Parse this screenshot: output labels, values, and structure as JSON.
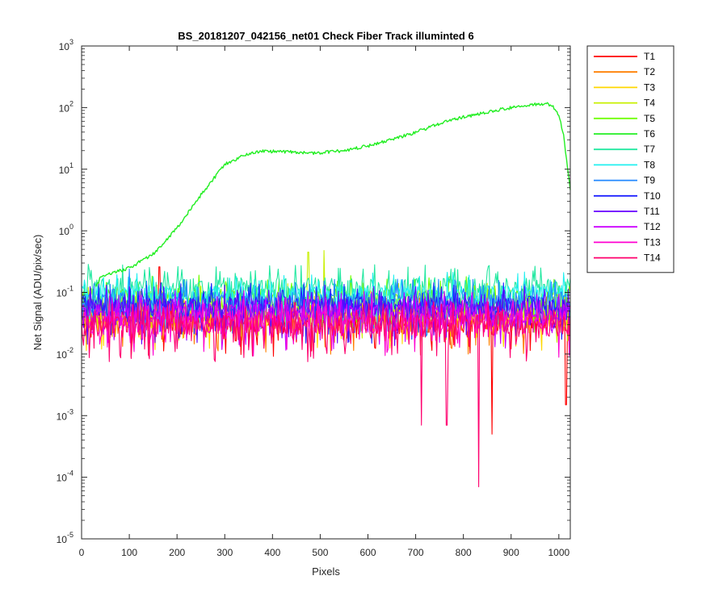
{
  "chart_data": {
    "type": "line",
    "title": "BS_20181207_042156_net01    Check Fiber     Track illuminted 6",
    "xlabel": "Pixels",
    "ylabel": "Net Signal (ADU/pix/sec)",
    "xlim": [
      0,
      1024
    ],
    "ylim": [
      1e-05,
      1000
    ],
    "yscale": "log",
    "xticks": [
      "0",
      "100",
      "200",
      "300",
      "400",
      "500",
      "600",
      "700",
      "800",
      "900",
      "1000"
    ],
    "yticks": [
      {
        "base": "10",
        "exp": "-5"
      },
      {
        "base": "10",
        "exp": "-4"
      },
      {
        "base": "10",
        "exp": "-3"
      },
      {
        "base": "10",
        "exp": "-2"
      },
      {
        "base": "10",
        "exp": "-1"
      },
      {
        "base": "10",
        "exp": "0"
      },
      {
        "base": "10",
        "exp": "1"
      },
      {
        "base": "10",
        "exp": "2"
      },
      {
        "base": "10",
        "exp": "3"
      }
    ],
    "grid": false,
    "legend_position": "outside-right",
    "illuminated_track": "T6",
    "illuminated_profile": {
      "x": [
        30,
        40,
        100,
        150,
        200,
        250,
        300,
        350,
        380,
        420,
        480,
        550,
        600,
        650,
        700,
        750,
        800,
        850,
        900,
        950,
        975,
        990,
        1000,
        1010,
        1020,
        1024
      ],
      "y": [
        0.12,
        0.18,
        0.25,
        0.42,
        1.1,
        3.8,
        12,
        18,
        19.5,
        19.5,
        18,
        20,
        24,
        30,
        40,
        55,
        70,
        85,
        100,
        112,
        115,
        100,
        75,
        35,
        8,
        4.5
      ]
    },
    "noise_floor": [
      {
        "series": "T1",
        "level": 0.035
      },
      {
        "series": "T2",
        "level": 0.038
      },
      {
        "series": "T3",
        "level": 0.045
      },
      {
        "series": "T4",
        "level": 0.06
      },
      {
        "series": "T5",
        "level": 0.08
      },
      {
        "series": "T7",
        "level": 0.12
      },
      {
        "series": "T8",
        "level": 0.09
      },
      {
        "series": "T9",
        "level": 0.07
      },
      {
        "series": "T10",
        "level": 0.06
      },
      {
        "series": "T11",
        "level": 0.055
      },
      {
        "series": "T12",
        "level": 0.045
      },
      {
        "series": "T13",
        "level": 0.035
      },
      {
        "series": "T14",
        "level": 0.03
      }
    ],
    "annotated_spikes": [
      {
        "series": "T1",
        "x": 163,
        "y": 0.26
      },
      {
        "series": "T9",
        "x": 100,
        "y": 0.24
      },
      {
        "series": "T4",
        "x": 475,
        "y": 0.45
      },
      {
        "series": "T4",
        "x": 508,
        "y": 0.48
      },
      {
        "series": "T14",
        "x": 712,
        "y": 0.0007
      },
      {
        "series": "T14",
        "x": 765,
        "y": 0.0007
      },
      {
        "series": "T14",
        "x": 832,
        "y": 7e-05
      },
      {
        "series": "T1",
        "x": 860,
        "y": 0.0005
      },
      {
        "series": "T1",
        "x": 1015,
        "y": 0.0015
      }
    ],
    "series": [
      {
        "name": "T1",
        "color": "#ff0000"
      },
      {
        "name": "T2",
        "color": "#ff7f00"
      },
      {
        "name": "T3",
        "color": "#ffd700"
      },
      {
        "name": "T4",
        "color": "#c8f000"
      },
      {
        "name": "T5",
        "color": "#70ff00"
      },
      {
        "name": "T6",
        "color": "#22ee22"
      },
      {
        "name": "T7",
        "color": "#22e8a0"
      },
      {
        "name": "T8",
        "color": "#22f0f0"
      },
      {
        "name": "T9",
        "color": "#2288ff"
      },
      {
        "name": "T10",
        "color": "#1f22ff"
      },
      {
        "name": "T11",
        "color": "#6600ff"
      },
      {
        "name": "T12",
        "color": "#cc00ff"
      },
      {
        "name": "T13",
        "color": "#ff00d0"
      },
      {
        "name": "T14",
        "color": "#ff006e"
      }
    ]
  }
}
